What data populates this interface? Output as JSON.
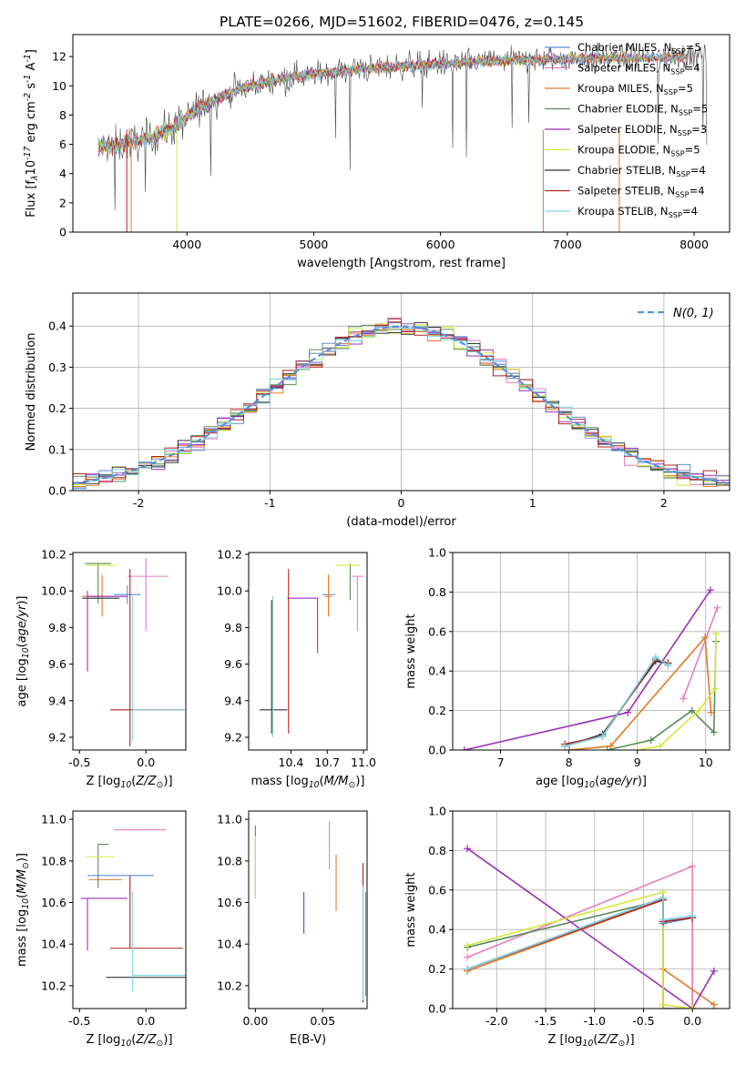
{
  "figure_title": "PLATE=0266, MJD=51602, FIBERID=0476, z=0.145",
  "models": [
    {
      "label": "Chabrier MILES, N$_{SSP}$=5",
      "short": "Chabrier MILES",
      "n": "5",
      "color": "#5b8fd6"
    },
    {
      "label": "Salpeter MILES, N$_{SSP}$=4",
      "short": "Salpeter MILES",
      "n": "4",
      "color": "#e77fbd"
    },
    {
      "label": "Kroupa MILES, N$_{SSP}$=5",
      "short": "Kroupa MILES",
      "n": "5",
      "color": "#e07b28"
    },
    {
      "label": "Chabrier ELODIE, N$_{SSP}$=5",
      "short": "Chabrier ELODIE",
      "n": "5",
      "color": "#5a8a5a"
    },
    {
      "label": "Salpeter ELODIE, N$_{SSP}$=3",
      "short": "Salpeter ELODIE",
      "n": "3",
      "color": "#9b30b8"
    },
    {
      "label": "Kroupa ELODIE, N$_{SSP}$=5",
      "short": "Kroupa ELODIE",
      "n": "5",
      "color": "#d6e83c"
    },
    {
      "label": "Chabrier STELIB, N$_{SSP}$=4",
      "short": "Chabrier STELIB",
      "n": "4",
      "color": "#333333"
    },
    {
      "label": "Salpeter STELIB, N$_{SSP}$=4",
      "short": "Salpeter STELIB",
      "n": "4",
      "color": "#b22222"
    },
    {
      "label": "Kroupa STELIB, N$_{SSP}$=4",
      "short": "Kroupa STELIB",
      "n": "4",
      "color": "#7fd3df"
    }
  ],
  "chart_data": [
    {
      "id": "spectrum",
      "type": "line",
      "xlabel": "wavelength [Angstrom, rest frame]",
      "ylabel": "Flux [f$_\\lambda$10$^{-17}$ erg cm$^{-2}$ s$^{-1}$ A$^{-1}$]",
      "xlim": [
        3100,
        8280
      ],
      "ylim": [
        0,
        13.5
      ],
      "xticks": [
        4000,
        5000,
        6000,
        7000,
        8000
      ],
      "yticks": [
        0,
        2,
        4,
        6,
        8,
        10,
        12
      ],
      "legend": "top-right",
      "continuum": {
        "x": [
          3300,
          3500,
          3700,
          3900,
          4100,
          4300,
          4500,
          4800,
          5200,
          5600,
          6000,
          6400,
          6800,
          7200,
          7600,
          8000,
          8100
        ],
        "y": [
          5.8,
          6.0,
          6.4,
          7.2,
          8.5,
          9.4,
          10.0,
          10.6,
          11.0,
          11.3,
          11.5,
          11.7,
          11.8,
          11.9,
          11.9,
          12.0,
          12.0
        ]
      }
    },
    {
      "id": "residuals",
      "type": "line",
      "xlabel": "(data-model)/error",
      "ylabel": "Normed distribution",
      "xlim": [
        -2.5,
        2.5
      ],
      "ylim": [
        0,
        0.48
      ],
      "xticks": [
        -2,
        -1,
        0,
        1,
        2
      ],
      "yticks": [
        0.0,
        0.1,
        0.2,
        0.3,
        0.4
      ],
      "grid": true,
      "legend": "top-right",
      "series_label": "$\\mathcal{N}(0,1)$",
      "series_color": "#5b8fd6"
    },
    {
      "id": "age_vs_Z",
      "type": "scatter",
      "xlabel": "Z [log$_{10}$($Z/Z_\\odot$)]",
      "ylabel": "age  [log$_{10}$($age/yr$)]",
      "xlim": [
        -0.55,
        0.3
      ],
      "ylim": [
        9.13,
        10.21
      ],
      "xticks": [
        -0.5,
        0.0
      ],
      "yticks": [
        9.2,
        9.4,
        9.6,
        9.8,
        10.0,
        10.2
      ],
      "points": [
        {
          "x": -0.14,
          "xerr": [
            0.1,
            0.1
          ],
          "y": 9.98,
          "yerr": [
            0.05,
            0.05
          ]
        },
        {
          "x": 0.0,
          "xerr": [
            0.14,
            0.17
          ],
          "y": 10.08,
          "yerr": [
            0.3,
            0.1
          ]
        },
        {
          "x": -0.33,
          "xerr": [
            0.15,
            0.06
          ],
          "y": 9.97,
          "yerr": [
            0.11,
            0.12
          ]
        },
        {
          "x": -0.36,
          "xerr": [
            0.1,
            0.1
          ],
          "y": 10.15,
          "yerr": [
            0.22,
            0.0
          ]
        },
        {
          "x": -0.44,
          "xerr": [
            0.0,
            0.3
          ],
          "y": 9.97,
          "yerr": [
            0.41,
            0.03
          ]
        },
        {
          "x": -0.38,
          "xerr": [
            0.07,
            0.15
          ],
          "y": 10.14,
          "yerr": [
            0.0,
            0.0
          ]
        },
        {
          "x": -0.3,
          "xerr": [
            0.18,
            0.1
          ],
          "y": 9.96,
          "yerr": [
            0.0,
            0.0
          ]
        },
        {
          "x": -0.12,
          "xerr": [
            0.15,
            0.4
          ],
          "y": 9.35,
          "yerr": [
            0.2,
            0.77
          ]
        },
        {
          "x": -0.1,
          "xerr": [
            0.0,
            0.4
          ],
          "y": 9.35,
          "yerr": [
            0.17,
            0.62
          ]
        }
      ]
    },
    {
      "id": "age_vs_mass",
      "type": "scatter",
      "xlabel": "mass [log$_{10}$($M/M_\\odot$)]",
      "ylabel": "",
      "xlim": [
        10.05,
        11.03
      ],
      "ylim": [
        9.13,
        10.21
      ],
      "xticks": [
        10.4,
        10.7,
        11.0
      ],
      "yticks": [
        9.2,
        9.4,
        9.6,
        9.8,
        10.0,
        10.2
      ],
      "points": [
        {
          "x": 10.74,
          "xerr": [
            0.08,
            0.03
          ],
          "y": 9.98,
          "yerr": [
            0.0,
            0.0
          ]
        },
        {
          "x": 10.95,
          "xerr": [
            0.05,
            0.05
          ],
          "y": 10.08,
          "yerr": [
            0.3,
            0.0
          ]
        },
        {
          "x": 10.71,
          "xerr": [
            0.03,
            0.03
          ],
          "y": 9.97,
          "yerr": [
            0.11,
            0.12
          ]
        },
        {
          "x": 10.89,
          "xerr": [
            0.0,
            0.0
          ],
          "y": 10.15,
          "yerr": [
            0.2,
            0.0
          ]
        },
        {
          "x": 10.62,
          "xerr": [
            0.25,
            0.0
          ],
          "y": 9.96,
          "yerr": [
            0.3,
            0.0
          ]
        },
        {
          "x": 10.82,
          "xerr": [
            0.05,
            0.15
          ],
          "y": 10.14,
          "yerr": [
            0.0,
            0.0
          ]
        },
        {
          "x": 10.24,
          "xerr": [
            0.1,
            0.13
          ],
          "y": 9.35,
          "yerr": [
            0.13,
            0.6
          ]
        },
        {
          "x": 10.38,
          "xerr": [
            0.0,
            0.0
          ],
          "y": 9.35,
          "yerr": [
            0.13,
            0.77
          ]
        },
        {
          "x": 10.25,
          "xerr": [
            0.0,
            0.0
          ],
          "y": 9.35,
          "yerr": [
            0.15,
            0.62
          ]
        }
      ]
    },
    {
      "id": "weight_vs_age",
      "type": "line",
      "xlabel": "age  [log$_{10}$($age/yr$)]",
      "ylabel": "mass weight",
      "xlim": [
        6.3,
        10.35
      ],
      "ylim": [
        0,
        1.0
      ],
      "xticks": [
        7,
        8,
        9,
        10
      ],
      "yticks": [
        0.0,
        0.2,
        0.4,
        0.6,
        0.8,
        1.0
      ],
      "grid": true,
      "series": [
        {
          "x": [
            7.94,
            8.49,
            9.27,
            9.45
          ],
          "y": [
            0.02,
            0.07,
            0.46,
            0.43
          ]
        },
        {
          "x": [
            9.67,
            10.17
          ],
          "y": [
            0.26,
            0.72
          ]
        },
        {
          "x": [
            8.01,
            8.61,
            9.99,
            10.08
          ],
          "y": [
            0.0,
            0.02,
            0.57,
            0.19
          ]
        },
        {
          "x": [
            8.56,
            9.2,
            9.8,
            10.12,
            10.15
          ],
          "y": [
            0.0,
            0.05,
            0.2,
            0.09,
            0.55
          ]
        },
        {
          "x": [
            6.47,
            8.86,
            10.07
          ],
          "y": [
            0.0,
            0.19,
            0.81
          ]
        },
        {
          "x": [
            9.0,
            9.33,
            9.9,
            10.14,
            10.15
          ],
          "y": [
            0.0,
            0.02,
            0.2,
            0.31,
            0.59
          ]
        },
        {
          "x": [
            7.94,
            8.49,
            9.27,
            9.45
          ],
          "y": [
            0.02,
            0.08,
            0.45,
            0.44
          ]
        },
        {
          "x": [
            7.94,
            8.49,
            9.27,
            9.45
          ],
          "y": [
            0.03,
            0.07,
            0.46,
            0.44
          ]
        },
        {
          "x": [
            7.94,
            8.49,
            9.27,
            9.45
          ],
          "y": [
            0.02,
            0.07,
            0.47,
            0.43
          ]
        }
      ]
    },
    {
      "id": "mass_vs_Z",
      "type": "scatter",
      "xlabel": "Z [log$_{10}$($Z/Z_\\odot$)]",
      "ylabel": "mass [log$_{10}$($M/M_\\odot$)]",
      "xlim": [
        -0.55,
        0.3
      ],
      "ylim": [
        10.09,
        11.04
      ],
      "xticks": [
        -0.5,
        0.0
      ],
      "yticks": [
        10.2,
        10.4,
        10.6,
        10.8,
        11.0
      ],
      "points": [
        {
          "x": -0.14,
          "xerr": [
            0.3,
            0.2
          ],
          "y": 10.73,
          "yerr": [
            0.0,
            0.0
          ]
        },
        {
          "x": 0.0,
          "xerr": [
            0.24,
            0.15
          ],
          "y": 10.95,
          "yerr": [
            0.0,
            0.0
          ]
        },
        {
          "x": -0.33,
          "xerr": [
            0.1,
            0.15
          ],
          "y": 10.71,
          "yerr": [
            0.0,
            0.0
          ]
        },
        {
          "x": -0.36,
          "xerr": [
            0.0,
            0.08
          ],
          "y": 10.88,
          "yerr": [
            0.21,
            0.0
          ]
        },
        {
          "x": -0.44,
          "xerr": [
            0.05,
            0.3
          ],
          "y": 10.62,
          "yerr": [
            0.25,
            0.0
          ]
        },
        {
          "x": -0.38,
          "xerr": [
            0.07,
            0.14
          ],
          "y": 10.82,
          "yerr": [
            0.0,
            0.0
          ]
        },
        {
          "x": -0.1,
          "xerr": [
            0.2,
            0.4
          ],
          "y": 10.24,
          "yerr": [
            0.0,
            0.0
          ]
        },
        {
          "x": -0.12,
          "xerr": [
            0.15,
            0.4
          ],
          "y": 10.38,
          "yerr": [
            0.0,
            0.35
          ]
        },
        {
          "x": -0.1,
          "xerr": [
            0.0,
            0.4
          ],
          "y": 10.25,
          "yerr": [
            0.08,
            0.4
          ]
        }
      ]
    },
    {
      "id": "mass_vs_ebv",
      "type": "scatter",
      "xlabel": "E(B-V)",
      "ylabel": "",
      "xlim": [
        -0.005,
        0.083
      ],
      "ylim": [
        10.09,
        11.04
      ],
      "xticks": [
        0.0,
        0.05
      ],
      "yticks": [
        10.2,
        10.4,
        10.6,
        10.8,
        11.0
      ],
      "points": [
        {
          "x": 0.082,
          "y": 10.45,
          "yerr": [
            0.3,
            0.2
          ]
        },
        {
          "x": 0.055,
          "y": 10.88,
          "yerr": [
            0.12,
            0.11
          ]
        },
        {
          "x": 0.06,
          "y": 10.68,
          "yerr": [
            0.12,
            0.15
          ]
        },
        {
          "x": 0.0,
          "y": 10.62,
          "yerr": [
            0.0,
            0.35
          ]
        },
        {
          "x": 0.036,
          "y": 10.55,
          "yerr": [
            0.1,
            0.1
          ]
        },
        {
          "x": 0.0,
          "y": 10.82,
          "yerr": [
            0.2,
            0.1
          ]
        },
        {
          "x": 0.08,
          "y": 10.4,
          "yerr": [
            0.28,
            0.26
          ]
        },
        {
          "x": 0.08,
          "y": 10.72,
          "yerr": [
            0.05,
            0.07
          ]
        },
        {
          "x": 0.08,
          "y": 10.35,
          "yerr": [
            0.22,
            0.33
          ]
        }
      ]
    },
    {
      "id": "weight_vs_Z",
      "type": "line",
      "xlabel": "Z [log$_{10}$($Z/Z_\\odot$)]",
      "ylabel": "mass weight",
      "xlim": [
        -2.45,
        0.38
      ],
      "ylim": [
        0,
        1.0
      ],
      "xticks": [
        -2.0,
        -1.5,
        -1.0,
        -0.5,
        0.0
      ],
      "yticks": [
        0.0,
        0.2,
        0.4,
        0.6,
        0.8,
        1.0
      ],
      "grid": true,
      "series": [
        {
          "x": [
            -2.3,
            -0.3,
            -0.3,
            0.0,
            0.0
          ],
          "y": [
            0.2,
            0.56,
            0.43,
            0.46,
            0.0
          ]
        },
        {
          "x": [
            -2.3,
            0.0,
            0.0
          ],
          "y": [
            0.26,
            0.72,
            0.0
          ]
        },
        {
          "x": [
            -2.3,
            -0.3,
            -0.3,
            -0.3,
            0.22,
            0.22
          ],
          "y": [
            0.19,
            0.55,
            0.0,
            0.2,
            0.02,
            0.0
          ]
        },
        {
          "x": [
            -2.3,
            -0.3,
            -0.3,
            0.0,
            0.0
          ],
          "y": [
            0.31,
            0.55,
            0.0,
            0.0,
            0.0
          ]
        },
        {
          "x": [
            -2.3,
            0.0,
            0.22
          ],
          "y": [
            0.81,
            0.0,
            0.19
          ]
        },
        {
          "x": [
            -2.3,
            -0.3,
            -0.3,
            0.0,
            0.0
          ],
          "y": [
            0.32,
            0.59,
            0.02,
            0.0,
            0.0
          ]
        },
        {
          "x": [
            -2.3,
            -0.3,
            -0.3,
            0.0
          ],
          "y": [
            0.2,
            0.56,
            0.44,
            0.46
          ]
        },
        {
          "x": [
            -2.3,
            -0.3,
            -0.3,
            0.0
          ],
          "y": [
            0.2,
            0.55,
            0.44,
            0.46
          ]
        },
        {
          "x": [
            -2.3,
            -0.3,
            -0.3,
            0.0
          ],
          "y": [
            0.2,
            0.56,
            0.45,
            0.47
          ]
        }
      ]
    }
  ]
}
